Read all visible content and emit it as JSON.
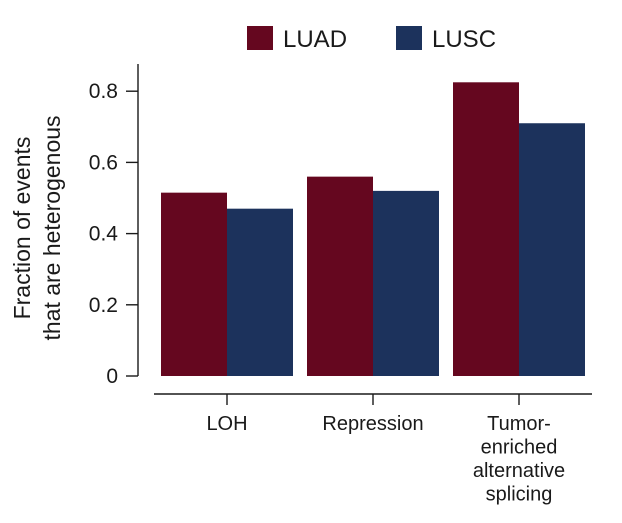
{
  "chart_data": {
    "type": "bar",
    "categories": [
      [
        "LOH"
      ],
      [
        "Repression"
      ],
      [
        "Tumor-",
        "enriched",
        "alternative",
        "splicing"
      ]
    ],
    "series": [
      {
        "name": "LUAD",
        "color": "#65071f",
        "values": [
          0.515,
          0.56,
          0.825
        ]
      },
      {
        "name": "LUSC",
        "color": "#1c325c",
        "values": [
          0.47,
          0.52,
          0.71
        ]
      }
    ],
    "ylabel": [
      "Fraction of events",
      "that are heterogenous"
    ],
    "xlabel": "",
    "ylim": [
      0,
      0.85
    ],
    "yticks": [
      0,
      0.2,
      0.4,
      0.6,
      0.8
    ],
    "ytick_labels": [
      "0",
      "0.2",
      "0.4",
      "0.6",
      "0.8"
    ],
    "legend_position": "top",
    "grid": false
  }
}
